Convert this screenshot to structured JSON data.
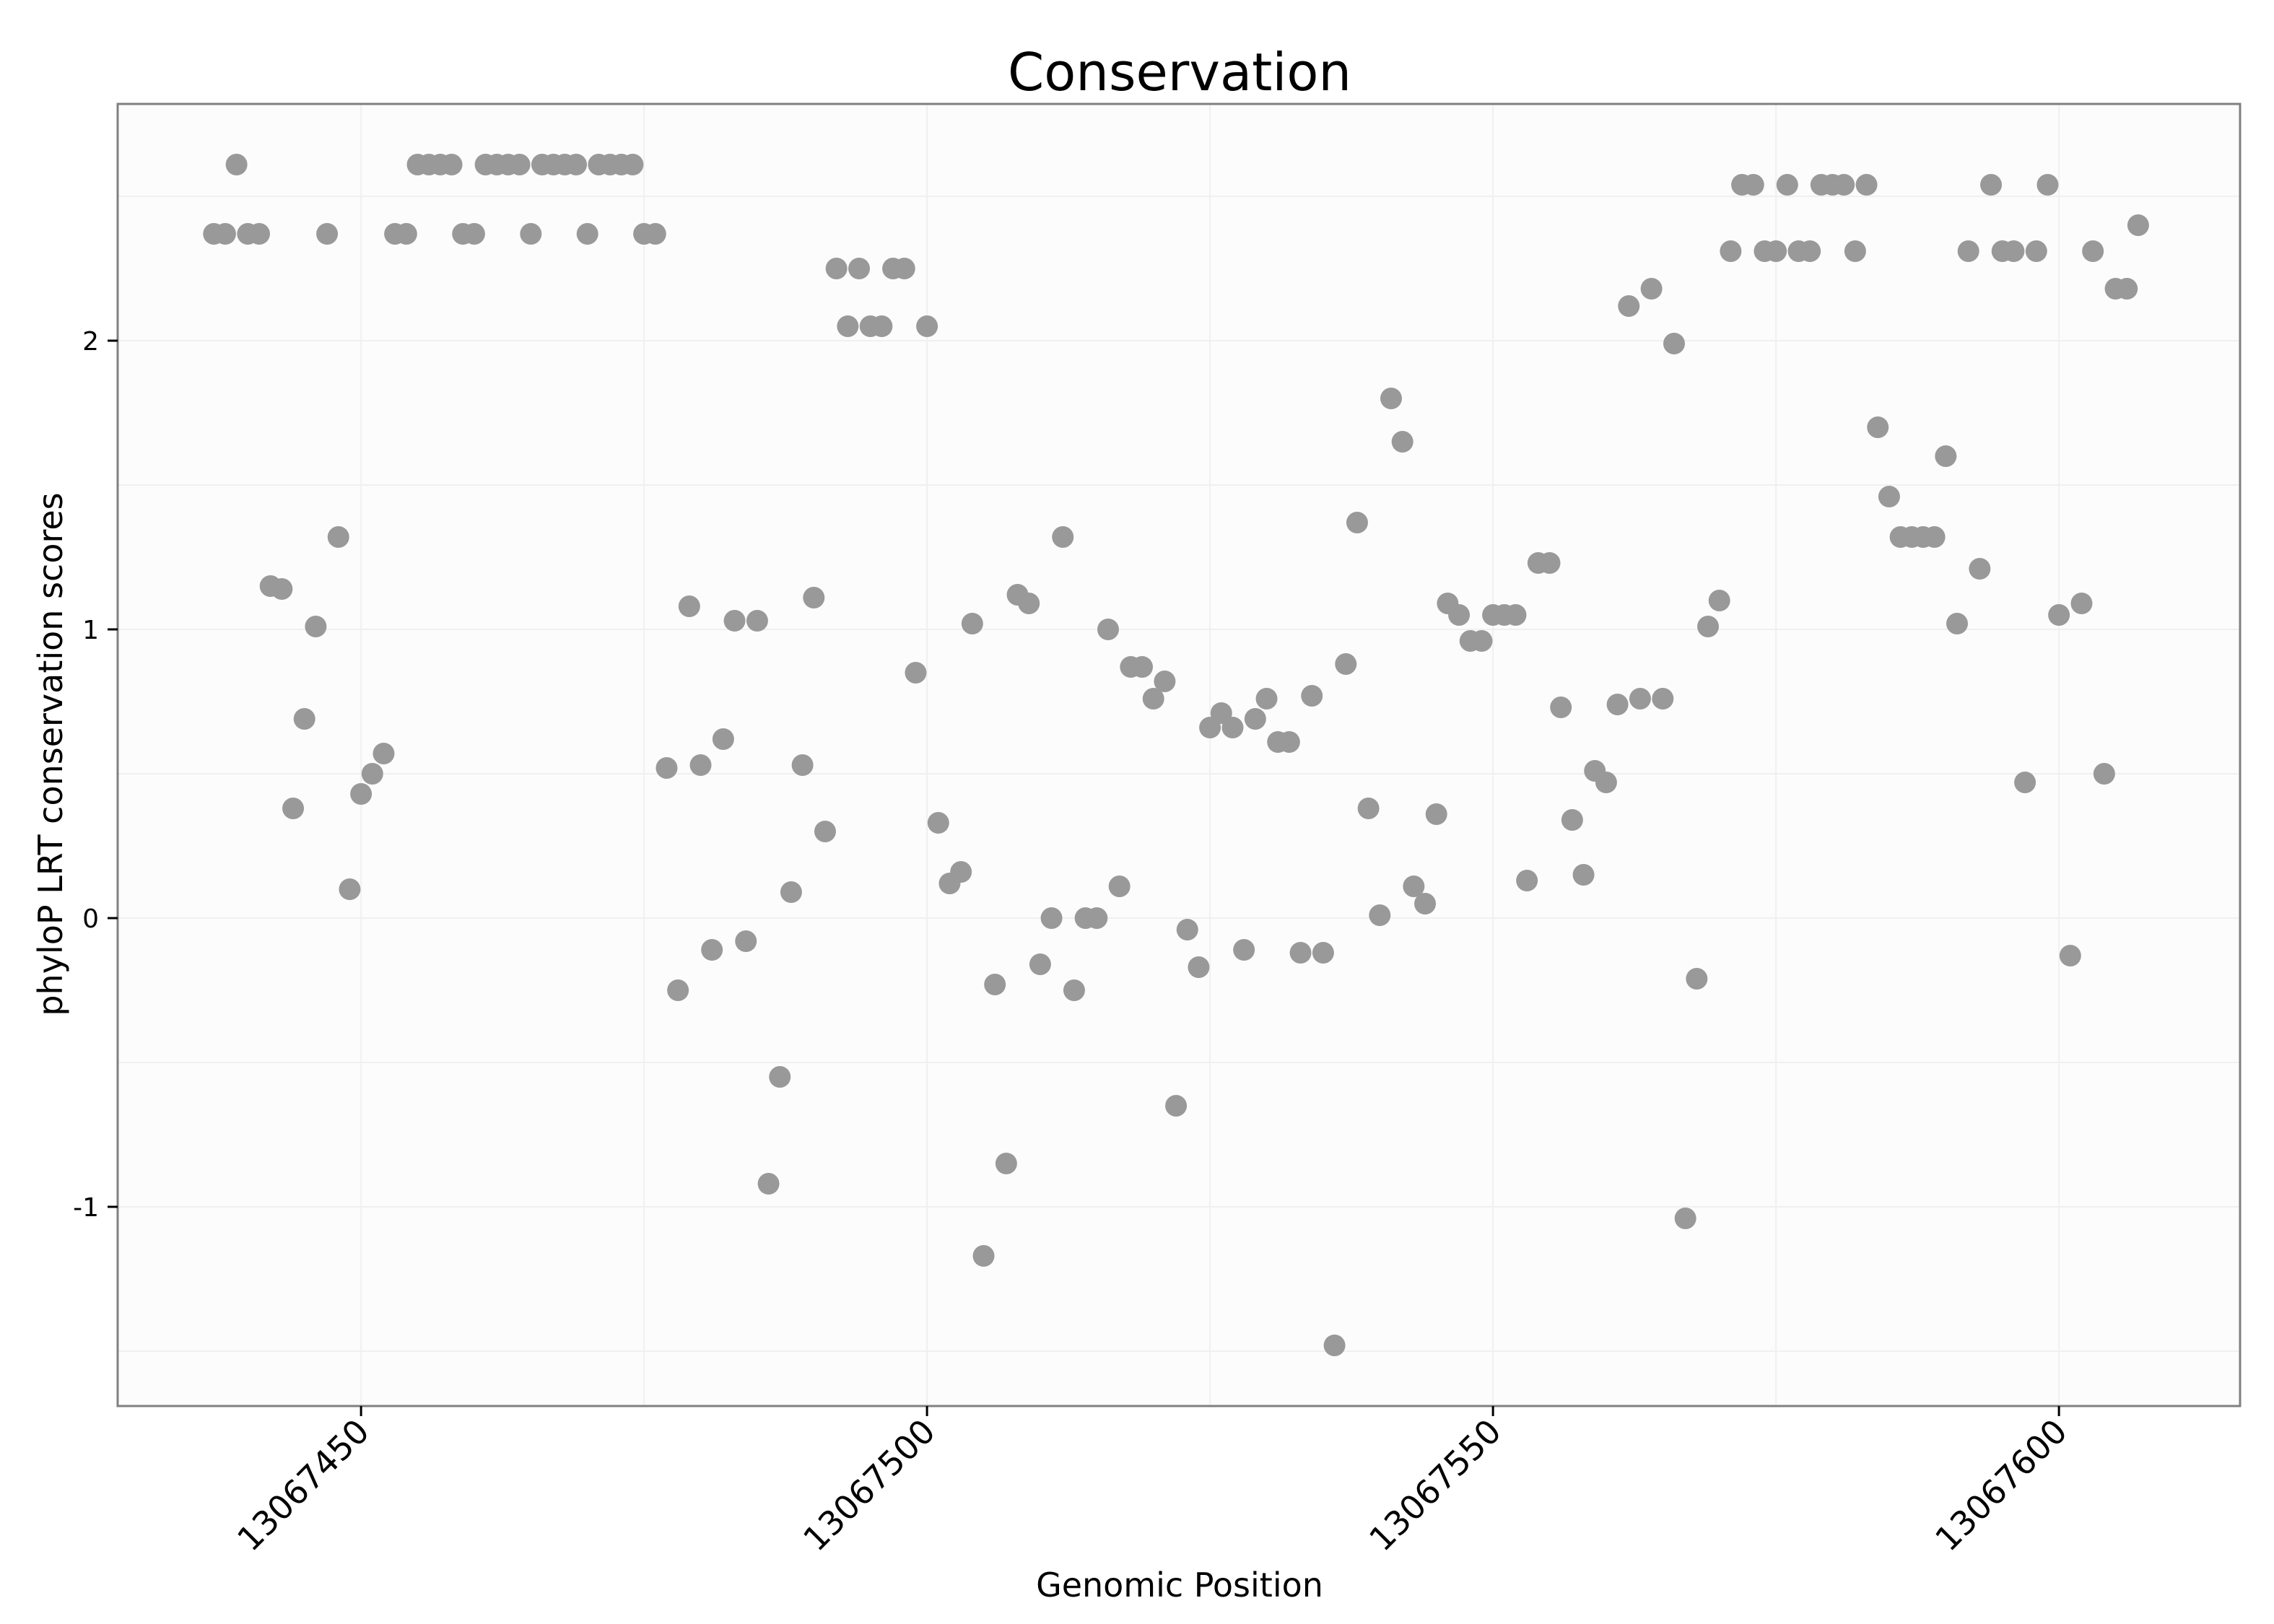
{
  "chart_data": {
    "type": "scatter",
    "title": "Conservation",
    "xlabel": "Genomic Position",
    "ylabel": "phyloP LRT conservation scores",
    "xlim": [
      13067428.5,
      13067616
    ],
    "ylim": [
      -1.69,
      2.82
    ],
    "xticks": [
      13067450,
      13067500,
      13067550,
      13067600
    ],
    "xtick_labels": [
      "13067450",
      "13067500",
      "13067550",
      "13067600"
    ],
    "yticks": [
      -1,
      0,
      1,
      2
    ],
    "ytick_labels": [
      "-1",
      "0",
      "1",
      "2"
    ],
    "grid": true,
    "legend": "none",
    "point_color": "#999999",
    "panel_background": "#fcfcfc",
    "gridline_color": "#f0f0f0",
    "frame_color": "#808080",
    "points": [
      [
        13067437,
        2.37
      ],
      [
        13067438,
        2.37
      ],
      [
        13067439,
        2.61
      ],
      [
        13067440,
        2.37
      ],
      [
        13067441,
        2.37
      ],
      [
        13067442,
        1.15
      ],
      [
        13067443,
        1.14
      ],
      [
        13067444,
        0.38
      ],
      [
        13067445,
        0.69
      ],
      [
        13067446,
        1.01
      ],
      [
        13067447,
        2.37
      ],
      [
        13067448,
        1.32
      ],
      [
        13067449,
        0.1
      ],
      [
        13067450,
        0.43
      ],
      [
        13067451,
        0.5
      ],
      [
        13067452,
        0.57
      ],
      [
        13067453,
        2.37
      ],
      [
        13067454,
        2.37
      ],
      [
        13067455,
        2.61
      ],
      [
        13067456,
        2.61
      ],
      [
        13067457,
        2.61
      ],
      [
        13067458,
        2.61
      ],
      [
        13067459,
        2.37
      ],
      [
        13067460,
        2.37
      ],
      [
        13067461,
        2.61
      ],
      [
        13067462,
        2.61
      ],
      [
        13067463,
        2.61
      ],
      [
        13067464,
        2.61
      ],
      [
        13067465,
        2.37
      ],
      [
        13067466,
        2.61
      ],
      [
        13067467,
        2.61
      ],
      [
        13067468,
        2.61
      ],
      [
        13067469,
        2.61
      ],
      [
        13067470,
        2.37
      ],
      [
        13067471,
        2.61
      ],
      [
        13067472,
        2.61
      ],
      [
        13067473,
        2.61
      ],
      [
        13067474,
        2.61
      ],
      [
        13067475,
        2.37
      ],
      [
        13067476,
        2.37
      ],
      [
        13067477,
        0.52
      ],
      [
        13067478,
        -0.25
      ],
      [
        13067479,
        1.08
      ],
      [
        13067480,
        0.53
      ],
      [
        13067481,
        -0.11
      ],
      [
        13067482,
        0.62
      ],
      [
        13067483,
        1.03
      ],
      [
        13067484,
        -0.08
      ],
      [
        13067485,
        1.03
      ],
      [
        13067486,
        -0.92
      ],
      [
        13067487,
        -0.55
      ],
      [
        13067488,
        0.09
      ],
      [
        13067489,
        0.53
      ],
      [
        13067490,
        1.11
      ],
      [
        13067491,
        0.3
      ],
      [
        13067492,
        2.25
      ],
      [
        13067493,
        2.05
      ],
      [
        13067494,
        2.25
      ],
      [
        13067495,
        2.05
      ],
      [
        13067496,
        2.05
      ],
      [
        13067497,
        2.25
      ],
      [
        13067498,
        2.25
      ],
      [
        13067499,
        0.85
      ],
      [
        13067500,
        2.05
      ],
      [
        13067501,
        0.33
      ],
      [
        13067502,
        0.12
      ],
      [
        13067503,
        0.16
      ],
      [
        13067504,
        1.02
      ],
      [
        13067505,
        -1.17
      ],
      [
        13067506,
        -0.23
      ],
      [
        13067507,
        -0.85
      ],
      [
        13067508,
        1.12
      ],
      [
        13067509,
        1.09
      ],
      [
        13067510,
        -0.16
      ],
      [
        13067511,
        0.0
      ],
      [
        13067512,
        1.32
      ],
      [
        13067513,
        -0.25
      ],
      [
        13067514,
        0.0
      ],
      [
        13067515,
        0.0
      ],
      [
        13067516,
        1.0
      ],
      [
        13067517,
        0.11
      ],
      [
        13067518,
        0.87
      ],
      [
        13067519,
        0.87
      ],
      [
        13067520,
        0.76
      ],
      [
        13067521,
        0.82
      ],
      [
        13067522,
        -0.65
      ],
      [
        13067523,
        -0.04
      ],
      [
        13067524,
        -0.17
      ],
      [
        13067525,
        0.66
      ],
      [
        13067526,
        0.71
      ],
      [
        13067527,
        0.66
      ],
      [
        13067528,
        -0.11
      ],
      [
        13067529,
        0.69
      ],
      [
        13067530,
        0.76
      ],
      [
        13067531,
        0.61
      ],
      [
        13067532,
        0.61
      ],
      [
        13067533,
        -0.12
      ],
      [
        13067534,
        0.77
      ],
      [
        13067535,
        -0.12
      ],
      [
        13067536,
        -1.48
      ],
      [
        13067537,
        0.88
      ],
      [
        13067538,
        1.37
      ],
      [
        13067539,
        0.38
      ],
      [
        13067540,
        0.01
      ],
      [
        13067541,
        1.8
      ],
      [
        13067542,
        1.65
      ],
      [
        13067543,
        0.11
      ],
      [
        13067544,
        0.05
      ],
      [
        13067545,
        0.36
      ],
      [
        13067546,
        1.09
      ],
      [
        13067547,
        1.05
      ],
      [
        13067548,
        0.96
      ],
      [
        13067549,
        0.96
      ],
      [
        13067550,
        1.05
      ],
      [
        13067551,
        1.05
      ],
      [
        13067552,
        1.05
      ],
      [
        13067553,
        0.13
      ],
      [
        13067554,
        1.23
      ],
      [
        13067555,
        1.23
      ],
      [
        13067556,
        0.73
      ],
      [
        13067557,
        0.34
      ],
      [
        13067558,
        0.15
      ],
      [
        13067559,
        0.51
      ],
      [
        13067560,
        0.47
      ],
      [
        13067561,
        0.74
      ],
      [
        13067562,
        2.12
      ],
      [
        13067563,
        0.76
      ],
      [
        13067564,
        2.18
      ],
      [
        13067565,
        0.76
      ],
      [
        13067566,
        1.99
      ],
      [
        13067567,
        -1.04
      ],
      [
        13067568,
        -0.21
      ],
      [
        13067569,
        1.01
      ],
      [
        13067570,
        1.1
      ],
      [
        13067571,
        2.31
      ],
      [
        13067572,
        2.54
      ],
      [
        13067573,
        2.54
      ],
      [
        13067574,
        2.31
      ],
      [
        13067575,
        2.31
      ],
      [
        13067576,
        2.54
      ],
      [
        13067577,
        2.31
      ],
      [
        13067578,
        2.31
      ],
      [
        13067579,
        2.54
      ],
      [
        13067580,
        2.54
      ],
      [
        13067581,
        2.54
      ],
      [
        13067582,
        2.31
      ],
      [
        13067583,
        2.54
      ],
      [
        13067584,
        1.7
      ],
      [
        13067585,
        1.46
      ],
      [
        13067586,
        1.32
      ],
      [
        13067587,
        1.32
      ],
      [
        13067588,
        1.32
      ],
      [
        13067589,
        1.32
      ],
      [
        13067590,
        1.6
      ],
      [
        13067591,
        1.02
      ],
      [
        13067592,
        2.31
      ],
      [
        13067593,
        1.21
      ],
      [
        13067594,
        2.54
      ],
      [
        13067595,
        2.31
      ],
      [
        13067596,
        2.31
      ],
      [
        13067597,
        0.47
      ],
      [
        13067598,
        2.31
      ],
      [
        13067599,
        2.54
      ],
      [
        13067600,
        1.05
      ],
      [
        13067601,
        -0.13
      ],
      [
        13067602,
        1.09
      ],
      [
        13067603,
        2.31
      ],
      [
        13067604,
        0.5
      ],
      [
        13067605,
        2.18
      ],
      [
        13067606,
        2.18
      ],
      [
        13067607,
        2.4
      ]
    ]
  }
}
